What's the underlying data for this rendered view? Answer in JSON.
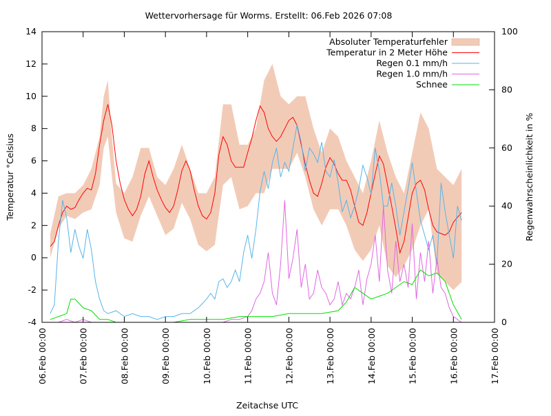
{
  "chart_data": {
    "type": "line",
    "title": "Wettervorhersage für Worms. Erstellt: 06.Feb 2026 07:08",
    "xlabel": "Zeitachse UTC",
    "ylabel": "Temperatur °Celsius",
    "y2label": "Regenwahrscheinlichkeit in %",
    "xlim_days": [
      0,
      11
    ],
    "ylim": [
      -4,
      14
    ],
    "y2lim": [
      0,
      100
    ],
    "grid": false,
    "legend_position": "top-right",
    "x_ticks": [
      "06.Feb 00:00",
      "07.Feb 00:00",
      "08.Feb 00:00",
      "09.Feb 00:00",
      "10.Feb 00:00",
      "11.Feb 00:00",
      "12.Feb 00:00",
      "13.Feb 00:00",
      "14.Feb 00:00",
      "15.Feb 00:00",
      "16.Feb 00:00",
      "17.Feb 00:00"
    ],
    "y_ticks": [
      "-4",
      "-2",
      "0",
      "2",
      "4",
      "6",
      "8",
      "10",
      "12",
      "14"
    ],
    "y2_ticks": [
      "0",
      "20",
      "40",
      "60",
      "80",
      "100"
    ],
    "series": [
      {
        "name": "Absoluter Temperaturfehler",
        "kind": "band",
        "color": "#f2cbb7",
        "axis": "y",
        "x_days": [
          0.2,
          0.4,
          0.6,
          0.8,
          1.0,
          1.2,
          1.4,
          1.5,
          1.6,
          1.7,
          1.8,
          2.0,
          2.2,
          2.4,
          2.6,
          2.8,
          3.0,
          3.2,
          3.4,
          3.6,
          3.8,
          4.0,
          4.2,
          4.4,
          4.6,
          4.8,
          5.0,
          5.2,
          5.4,
          5.6,
          5.8,
          6.0,
          6.2,
          6.4,
          6.6,
          6.8,
          7.0,
          7.2,
          7.4,
          7.6,
          7.8,
          8.0,
          8.2,
          8.4,
          8.6,
          8.8,
          9.0,
          9.2,
          9.4,
          9.6,
          9.8,
          10.0,
          10.2
        ],
        "lower": [
          0.0,
          1.8,
          2.6,
          2.4,
          2.8,
          3.0,
          4.5,
          6.8,
          7.5,
          5.0,
          2.8,
          1.2,
          1.0,
          2.6,
          3.8,
          2.6,
          1.4,
          1.8,
          3.4,
          2.4,
          0.8,
          0.4,
          0.8,
          4.5,
          5.0,
          3.0,
          3.2,
          4.0,
          4.0,
          5.5,
          5.5,
          5.5,
          6.5,
          5.0,
          3.0,
          2.0,
          3.0,
          3.0,
          2.0,
          0.5,
          -0.2,
          0.5,
          2.0,
          -0.5,
          -1.2,
          -0.5,
          0.5,
          2.0,
          3.0,
          -1.0,
          -1.5,
          -2.0,
          -1.5
        ],
        "upper": [
          1.5,
          3.8,
          4.0,
          4.0,
          4.5,
          5.5,
          7.5,
          10.0,
          11.0,
          7.5,
          4.6,
          4.0,
          5.0,
          6.8,
          6.8,
          5.0,
          4.5,
          5.5,
          7.0,
          5.5,
          4.0,
          4.0,
          5.0,
          9.5,
          9.5,
          7.0,
          7.0,
          8.0,
          11.0,
          12.0,
          10.0,
          9.5,
          10.0,
          10.0,
          8.0,
          6.5,
          8.0,
          7.5,
          6.0,
          5.0,
          4.0,
          6.0,
          8.5,
          6.5,
          5.0,
          4.0,
          6.5,
          9.0,
          8.0,
          5.5,
          5.0,
          4.5,
          5.5
        ]
      },
      {
        "name": "Temperatur in 2 Meter Höhe",
        "kind": "line",
        "color": "#ff0000",
        "axis": "y",
        "x_days": [
          0.2,
          0.3,
          0.4,
          0.5,
          0.6,
          0.7,
          0.8,
          0.9,
          1.0,
          1.1,
          1.2,
          1.3,
          1.4,
          1.5,
          1.6,
          1.7,
          1.8,
          1.9,
          2.0,
          2.1,
          2.2,
          2.3,
          2.4,
          2.5,
          2.6,
          2.7,
          2.8,
          2.9,
          3.0,
          3.1,
          3.2,
          3.3,
          3.4,
          3.5,
          3.6,
          3.7,
          3.8,
          3.9,
          4.0,
          4.1,
          4.2,
          4.3,
          4.4,
          4.5,
          4.6,
          4.7,
          4.8,
          4.9,
          5.0,
          5.1,
          5.2,
          5.3,
          5.4,
          5.5,
          5.6,
          5.7,
          5.8,
          5.9,
          6.0,
          6.1,
          6.2,
          6.3,
          6.4,
          6.5,
          6.6,
          6.7,
          6.8,
          6.9,
          7.0,
          7.1,
          7.2,
          7.3,
          7.4,
          7.5,
          7.6,
          7.7,
          7.8,
          7.9,
          8.0,
          8.1,
          8.2,
          8.3,
          8.4,
          8.5,
          8.6,
          8.7,
          8.8,
          8.9,
          9.0,
          9.1,
          9.2,
          9.3,
          9.4,
          9.5,
          9.6,
          9.7,
          9.8,
          9.9,
          10.0,
          10.1,
          10.2
        ],
        "values": [
          0.7,
          1.0,
          2.0,
          2.8,
          3.2,
          3.0,
          3.1,
          3.6,
          4.0,
          4.3,
          4.2,
          5.2,
          7.0,
          8.5,
          9.5,
          8.2,
          6.0,
          4.6,
          3.6,
          3.0,
          2.6,
          3.0,
          3.8,
          5.2,
          6.0,
          5.0,
          4.2,
          3.6,
          3.1,
          2.8,
          3.2,
          4.2,
          5.4,
          6.0,
          5.4,
          4.2,
          3.2,
          2.6,
          2.4,
          2.8,
          4.0,
          6.4,
          7.5,
          7.0,
          6.0,
          5.6,
          5.6,
          5.6,
          6.5,
          7.4,
          8.5,
          9.4,
          9.0,
          8.0,
          7.5,
          7.2,
          7.5,
          8.0,
          8.5,
          8.7,
          8.2,
          7.0,
          5.8,
          4.8,
          4.0,
          3.8,
          4.6,
          5.6,
          6.2,
          5.8,
          5.2,
          4.8,
          4.8,
          4.2,
          3.2,
          2.2,
          2.0,
          2.8,
          4.0,
          5.2,
          6.3,
          5.8,
          4.5,
          3.2,
          1.8,
          0.3,
          1.0,
          2.5,
          4.0,
          4.6,
          4.8,
          4.2,
          3.0,
          2.0,
          1.6,
          1.5,
          1.4,
          1.6,
          2.2,
          2.5,
          2.8
        ]
      },
      {
        "name": "Regen 0.1 mm/h",
        "kind": "line",
        "color": "#56b4e9",
        "axis": "y2",
        "x_days": [
          0.2,
          0.3,
          0.4,
          0.5,
          0.6,
          0.7,
          0.8,
          0.9,
          1.0,
          1.1,
          1.2,
          1.3,
          1.4,
          1.5,
          1.6,
          1.8,
          2.0,
          2.2,
          2.4,
          2.6,
          2.8,
          3.0,
          3.2,
          3.4,
          3.6,
          3.8,
          4.0,
          4.1,
          4.2,
          4.3,
          4.4,
          4.5,
          4.6,
          4.7,
          4.8,
          4.9,
          5.0,
          5.1,
          5.2,
          5.3,
          5.4,
          5.5,
          5.6,
          5.7,
          5.8,
          5.9,
          6.0,
          6.1,
          6.2,
          6.3,
          6.4,
          6.5,
          6.6,
          6.7,
          6.8,
          6.9,
          7.0,
          7.1,
          7.2,
          7.3,
          7.4,
          7.5,
          7.6,
          7.7,
          7.8,
          7.9,
          8.0,
          8.1,
          8.2,
          8.3,
          8.4,
          8.5,
          8.6,
          8.7,
          8.8,
          8.9,
          9.0,
          9.1,
          9.2,
          9.3,
          9.4,
          9.5,
          9.6,
          9.7,
          9.8,
          9.9,
          10.0,
          10.1,
          10.2
        ],
        "values": [
          3,
          6,
          28,
          42,
          36,
          24,
          32,
          26,
          22,
          32,
          25,
          14,
          8,
          4,
          3,
          4,
          2,
          3,
          2,
          2,
          1,
          2,
          2,
          3,
          3,
          5,
          8,
          10,
          8,
          14,
          15,
          12,
          14,
          18,
          14,
          24,
          30,
          22,
          32,
          45,
          52,
          46,
          55,
          60,
          50,
          55,
          52,
          60,
          68,
          62,
          52,
          60,
          58,
          55,
          62,
          52,
          50,
          56,
          48,
          38,
          42,
          36,
          40,
          46,
          54,
          50,
          44,
          60,
          52,
          40,
          40,
          48,
          40,
          30,
          38,
          46,
          55,
          45,
          35,
          30,
          25,
          30,
          20,
          48,
          38,
          30,
          22,
          40,
          35
        ]
      },
      {
        "name": "Regen 1.0 mm/h",
        "kind": "line",
        "color": "#e066e0",
        "axis": "y2",
        "x_days": [
          0.2,
          0.4,
          0.6,
          0.8,
          1.0,
          1.2,
          1.4,
          1.6,
          1.8,
          2.0,
          2.4,
          2.8,
          3.2,
          3.6,
          4.0,
          4.4,
          4.6,
          4.8,
          5.0,
          5.1,
          5.2,
          5.3,
          5.4,
          5.5,
          5.6,
          5.7,
          5.8,
          5.9,
          6.0,
          6.1,
          6.2,
          6.3,
          6.4,
          6.5,
          6.6,
          6.7,
          6.8,
          6.9,
          7.0,
          7.1,
          7.2,
          7.3,
          7.4,
          7.5,
          7.6,
          7.7,
          7.8,
          7.9,
          8.0,
          8.1,
          8.2,
          8.3,
          8.4,
          8.5,
          8.6,
          8.7,
          8.8,
          8.9,
          9.0,
          9.1,
          9.2,
          9.3,
          9.4,
          9.5,
          9.6,
          9.7,
          9.8,
          9.9,
          10.0,
          10.1,
          10.2
        ],
        "values": [
          0,
          0,
          1,
          0,
          1,
          0,
          0,
          0,
          0,
          0,
          0,
          0,
          0,
          0,
          0,
          0,
          1,
          1,
          2,
          4,
          8,
          10,
          14,
          24,
          10,
          6,
          20,
          42,
          15,
          22,
          32,
          12,
          20,
          8,
          10,
          18,
          12,
          10,
          6,
          8,
          14,
          6,
          10,
          8,
          12,
          18,
          6,
          15,
          20,
          30,
          14,
          40,
          18,
          10,
          28,
          14,
          20,
          12,
          34,
          8,
          24,
          14,
          28,
          10,
          22,
          12,
          10,
          5,
          2,
          1,
          0
        ]
      },
      {
        "name": "Schnee",
        "kind": "line",
        "color": "#00dd00",
        "axis": "y2",
        "x_days": [
          0.2,
          0.4,
          0.6,
          0.7,
          0.8,
          1.0,
          1.2,
          1.4,
          1.6,
          1.8,
          2.0,
          2.4,
          2.8,
          3.2,
          3.6,
          4.0,
          4.4,
          4.8,
          5.2,
          5.6,
          6.0,
          6.4,
          6.8,
          7.2,
          7.4,
          7.6,
          7.8,
          8.0,
          8.2,
          8.4,
          8.6,
          8.8,
          9.0,
          9.2,
          9.4,
          9.6,
          9.8,
          10.0,
          10.2
        ],
        "values": [
          1,
          2,
          3,
          8,
          8,
          5,
          4,
          1,
          1,
          0,
          0,
          0,
          0,
          0,
          1,
          1,
          1,
          2,
          2,
          2,
          3,
          3,
          3,
          4,
          7,
          12,
          10,
          8,
          9,
          10,
          12,
          14,
          13,
          18,
          16,
          17,
          14,
          6,
          1
        ]
      }
    ]
  }
}
